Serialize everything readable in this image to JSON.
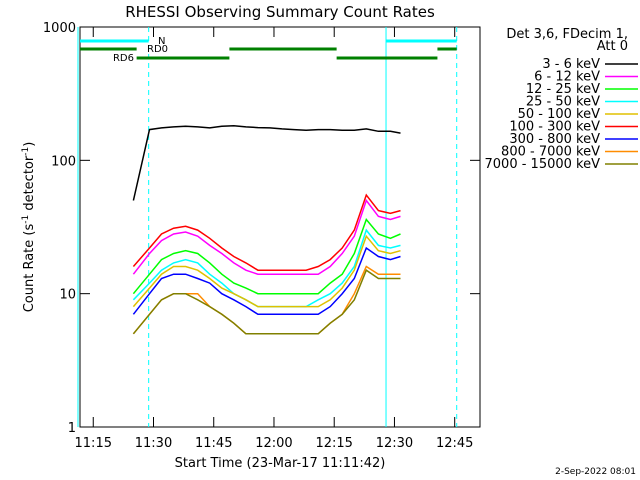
{
  "chart_data": {
    "type": "line",
    "title": "RHESSI Observing Summary Count Rates",
    "xlabel": "Start Time (23-Mar-17 11:11:42)",
    "ylabel_parts": [
      "Count Rate (s",
      "-1",
      " detector",
      "-1",
      ")"
    ],
    "legend_title": [
      "Det 3,6, FDecim 1,",
      "Att 0"
    ],
    "footer": "2-Sep-2022 08:01",
    "log_y": true,
    "xlim": [
      671.7,
      771.3
    ],
    "ylim": [
      1,
      1000
    ],
    "yticks": [
      1,
      10,
      100,
      1000
    ],
    "xticks": [
      {
        "value": 675,
        "label": "11:15"
      },
      {
        "value": 690,
        "label": "11:30"
      },
      {
        "value": 705,
        "label": "11:45"
      },
      {
        "value": 720,
        "label": "12:00"
      },
      {
        "value": 735,
        "label": "12:15"
      },
      {
        "value": 750,
        "label": "12:30"
      },
      {
        "value": 765,
        "label": "12:45"
      }
    ],
    "x": [
      685,
      689,
      692,
      695,
      698,
      701,
      704,
      707,
      710,
      713,
      716,
      719,
      722,
      725,
      728,
      731,
      734,
      737,
      740,
      743,
      746,
      749,
      751.5
    ],
    "series": [
      {
        "name": "3 - 6 keV",
        "color": "#000000",
        "values": [
          50,
          170,
          175,
          178,
          180,
          178,
          175,
          180,
          182,
          178,
          176,
          175,
          172,
          170,
          168,
          170,
          170,
          168,
          168,
          172,
          165,
          165,
          160
        ]
      },
      {
        "name": "6 - 12 keV",
        "color": "#ff00ff",
        "values": [
          14,
          20,
          25,
          28,
          29,
          27,
          23,
          20,
          17,
          15,
          14,
          14,
          14,
          14,
          14,
          14,
          16,
          20,
          27,
          50,
          38,
          36,
          38
        ]
      },
      {
        "name": "12 - 25 keV",
        "color": "#00ff00",
        "values": [
          10,
          14,
          18,
          20,
          21,
          20,
          17,
          14,
          12,
          11,
          10,
          10,
          10,
          10,
          10,
          10,
          12,
          14,
          20,
          36,
          28,
          26,
          28
        ]
      },
      {
        "name": "25 - 50 keV",
        "color": "#00ffff",
        "values": [
          9,
          12,
          15,
          17,
          18,
          17,
          14,
          12,
          10,
          9,
          8,
          8,
          8,
          8,
          8,
          9,
          10,
          12,
          16,
          30,
          23,
          22,
          23
        ]
      },
      {
        "name": "50 - 100 keV",
        "color": "#e0c000",
        "values": [
          8,
          11,
          14,
          16,
          16,
          15,
          13,
          11,
          10,
          9,
          8,
          8,
          8,
          8,
          8,
          8,
          9,
          11,
          15,
          27,
          21,
          20,
          21
        ]
      },
      {
        "name": "100 - 300 keV",
        "color": "#ff0000",
        "values": [
          16,
          22,
          28,
          31,
          32,
          30,
          26,
          22,
          19,
          17,
          15,
          15,
          15,
          15,
          15,
          16,
          18,
          22,
          30,
          55,
          42,
          40,
          42
        ]
      },
      {
        "name": "300 - 800 keV",
        "color": "#0000ff",
        "values": [
          7,
          10,
          13,
          14,
          14,
          13,
          12,
          10,
          9,
          8,
          7,
          7,
          7,
          7,
          7,
          7,
          8,
          10,
          13,
          22,
          19,
          18,
          19
        ]
      },
      {
        "name": "800 - 7000 keV",
        "color": "#ff8c00",
        "values": [
          5,
          7,
          9,
          10,
          10,
          10,
          8,
          7,
          6,
          5,
          5,
          5,
          5,
          5,
          5,
          5,
          6,
          7,
          10,
          16,
          14,
          14,
          14
        ]
      },
      {
        "name": "7000 - 15000 keV",
        "color": "#808000",
        "values": [
          5,
          7,
          9,
          10,
          10,
          9,
          8,
          7,
          6,
          5,
          5,
          5,
          5,
          5,
          5,
          5,
          6,
          7,
          9,
          15,
          13,
          13,
          13
        ]
      }
    ],
    "flags": [
      {
        "name": "N",
        "color": "#00ffff",
        "segments": [
          [
            671.7,
            688.8
          ],
          [
            747.9,
            765.5
          ]
        ]
      },
      {
        "name": "RD0",
        "color": "#008000",
        "segments": [
          [
            671.7,
            685.8
          ],
          [
            708.9,
            735.6
          ],
          [
            760.7,
            765.5
          ]
        ]
      },
      {
        "name": "RD6",
        "color": "#008000",
        "segments": [
          [
            685.8,
            708.9
          ],
          [
            735.6,
            760.7
          ]
        ]
      }
    ],
    "markers": [
      {
        "time": 671.2,
        "style": "solid",
        "color": "#00ffff"
      },
      {
        "time": 688.8,
        "style": "dashed",
        "color": "#00ffff"
      },
      {
        "time": 747.9,
        "style": "solid",
        "color": "#00ffff"
      },
      {
        "time": 765.5,
        "style": "dashed",
        "color": "#00ffff"
      }
    ]
  }
}
